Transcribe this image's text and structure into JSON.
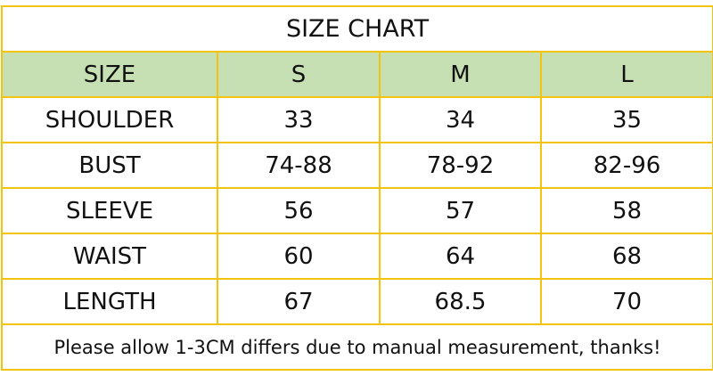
{
  "title": "SIZE CHART",
  "table": {
    "header": [
      "SIZE",
      "S",
      "M",
      "L"
    ],
    "rows": [
      [
        "SHOULDER",
        "33",
        "34",
        "35"
      ],
      [
        "BUST",
        "74-88",
        "78-92",
        "82-96"
      ],
      [
        "SLEEVE",
        "56",
        "57",
        "58"
      ],
      [
        "WAIST",
        "60",
        "64",
        "68"
      ],
      [
        "LENGTH",
        "67",
        "68.5",
        "70"
      ]
    ]
  },
  "footer": "Please allow 1-3CM differs due to manual measurement, thanks!"
}
